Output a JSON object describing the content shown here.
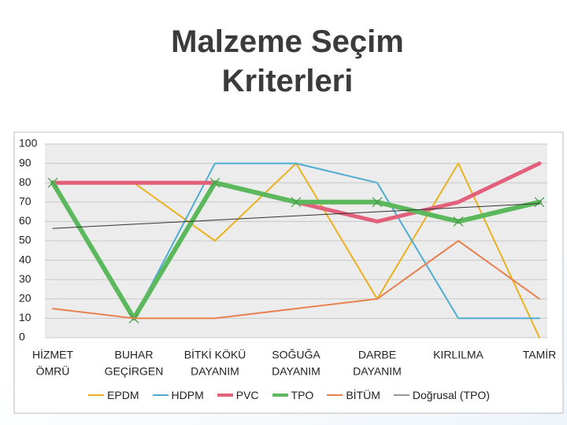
{
  "title": "Malzeme Seçim Kriterleri",
  "chart_data": {
    "type": "line",
    "categories": [
      [
        "HİZMET",
        "ÖMRÜ"
      ],
      [
        "BUHAR",
        "GEÇİRGEN"
      ],
      [
        "BİTKİ KÖKÜ",
        "DAYANIM"
      ],
      [
        "SOĞUĞA",
        "DAYANIM"
      ],
      [
        "DARBE",
        "DAYANIM"
      ],
      [
        "KIRLILMA"
      ],
      [
        "TAMİR"
      ]
    ],
    "ylim": [
      0,
      100
    ],
    "yticks": [
      0,
      10,
      20,
      30,
      40,
      50,
      60,
      70,
      80,
      90,
      100
    ],
    "grid": true,
    "legend": "bottom",
    "series": [
      {
        "name": "EPDM",
        "color": "#e9b21e",
        "width": 2,
        "values": [
          80,
          80,
          50,
          90,
          20,
          90,
          0
        ]
      },
      {
        "name": "HDPM",
        "color": "#4eadd0",
        "width": 2,
        "values": [
          80,
          10,
          90,
          90,
          80,
          10,
          10
        ]
      },
      {
        "name": "PVC",
        "color": "#e2607a",
        "width": 5,
        "values": [
          80,
          80,
          80,
          70,
          60,
          70,
          90
        ]
      },
      {
        "name": "TPO",
        "color": "#5cb85c",
        "width": 6,
        "marker": "x",
        "values": [
          80,
          10,
          80,
          70,
          70,
          60,
          70
        ]
      },
      {
        "name": "BİTÜM",
        "color": "#e8814f",
        "width": 2,
        "values": [
          15,
          10,
          10,
          15,
          20,
          50,
          20
        ]
      },
      {
        "name": "Doğrusal (TPO)",
        "color": "#333333",
        "width": 1,
        "values": [
          56.4,
          58.6,
          60.7,
          62.9,
          65,
          67.1,
          69.3
        ]
      }
    ]
  }
}
